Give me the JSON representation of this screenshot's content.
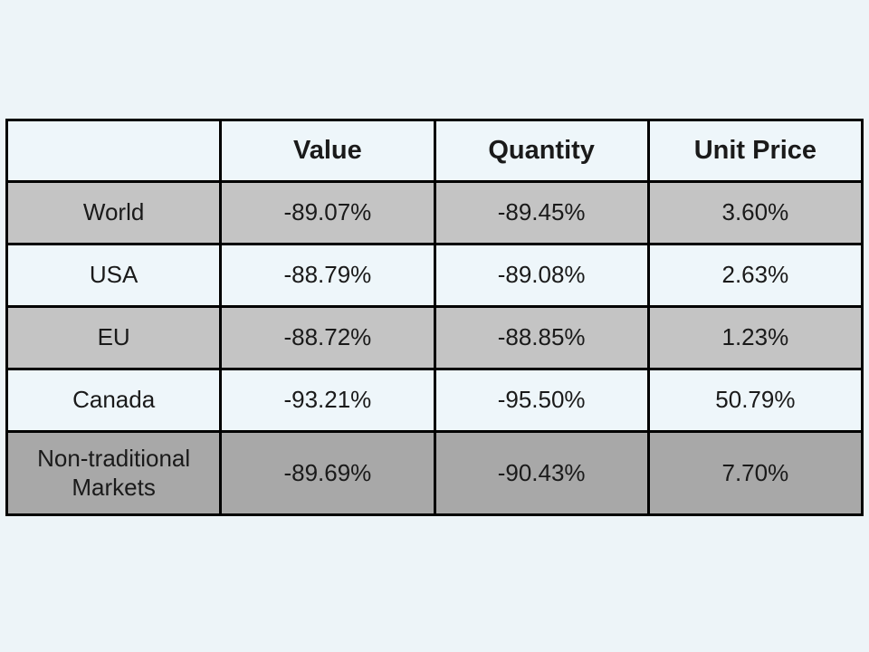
{
  "colors": {
    "slide_background": "#edf4f8",
    "row_light": "#eef6fa",
    "row_gray": "#c4c4c4",
    "row_dark": "#a8a8a8",
    "border": "#000000",
    "text": "#1a1a1a"
  },
  "table": {
    "columns": [
      "",
      "Value",
      "Quantity",
      "Unit Price"
    ],
    "rows": [
      {
        "cells": [
          "World",
          "-89.07%",
          "-89.45%",
          "3.60%"
        ]
      },
      {
        "cells": [
          "USA",
          "-88.79%",
          "-89.08%",
          "2.63%"
        ]
      },
      {
        "cells": [
          "EU",
          "-88.72%",
          "-88.85%",
          "1.23%"
        ]
      },
      {
        "cells": [
          "Canada",
          "-93.21%",
          "-95.50%",
          "50.79%"
        ]
      },
      {
        "cells": [
          "Non-traditional Markets",
          "-89.69%",
          "-90.43%",
          "7.70%"
        ]
      }
    ]
  },
  "chart_data": {
    "type": "table",
    "title": "",
    "columns": [
      "",
      "Value",
      "Quantity",
      "Unit Price"
    ],
    "categories": [
      "World",
      "USA",
      "EU",
      "Canada",
      "Non-traditional Markets"
    ],
    "series": [
      {
        "name": "Value",
        "values": [
          -89.07,
          -88.79,
          -88.72,
          -93.21,
          -89.69
        ]
      },
      {
        "name": "Quantity",
        "values": [
          -89.45,
          -89.08,
          -88.85,
          -95.5,
          -90.43
        ]
      },
      {
        "name": "Unit Price",
        "values": [
          3.6,
          2.63,
          1.23,
          50.79,
          7.7
        ]
      }
    ],
    "value_unit": "%"
  }
}
